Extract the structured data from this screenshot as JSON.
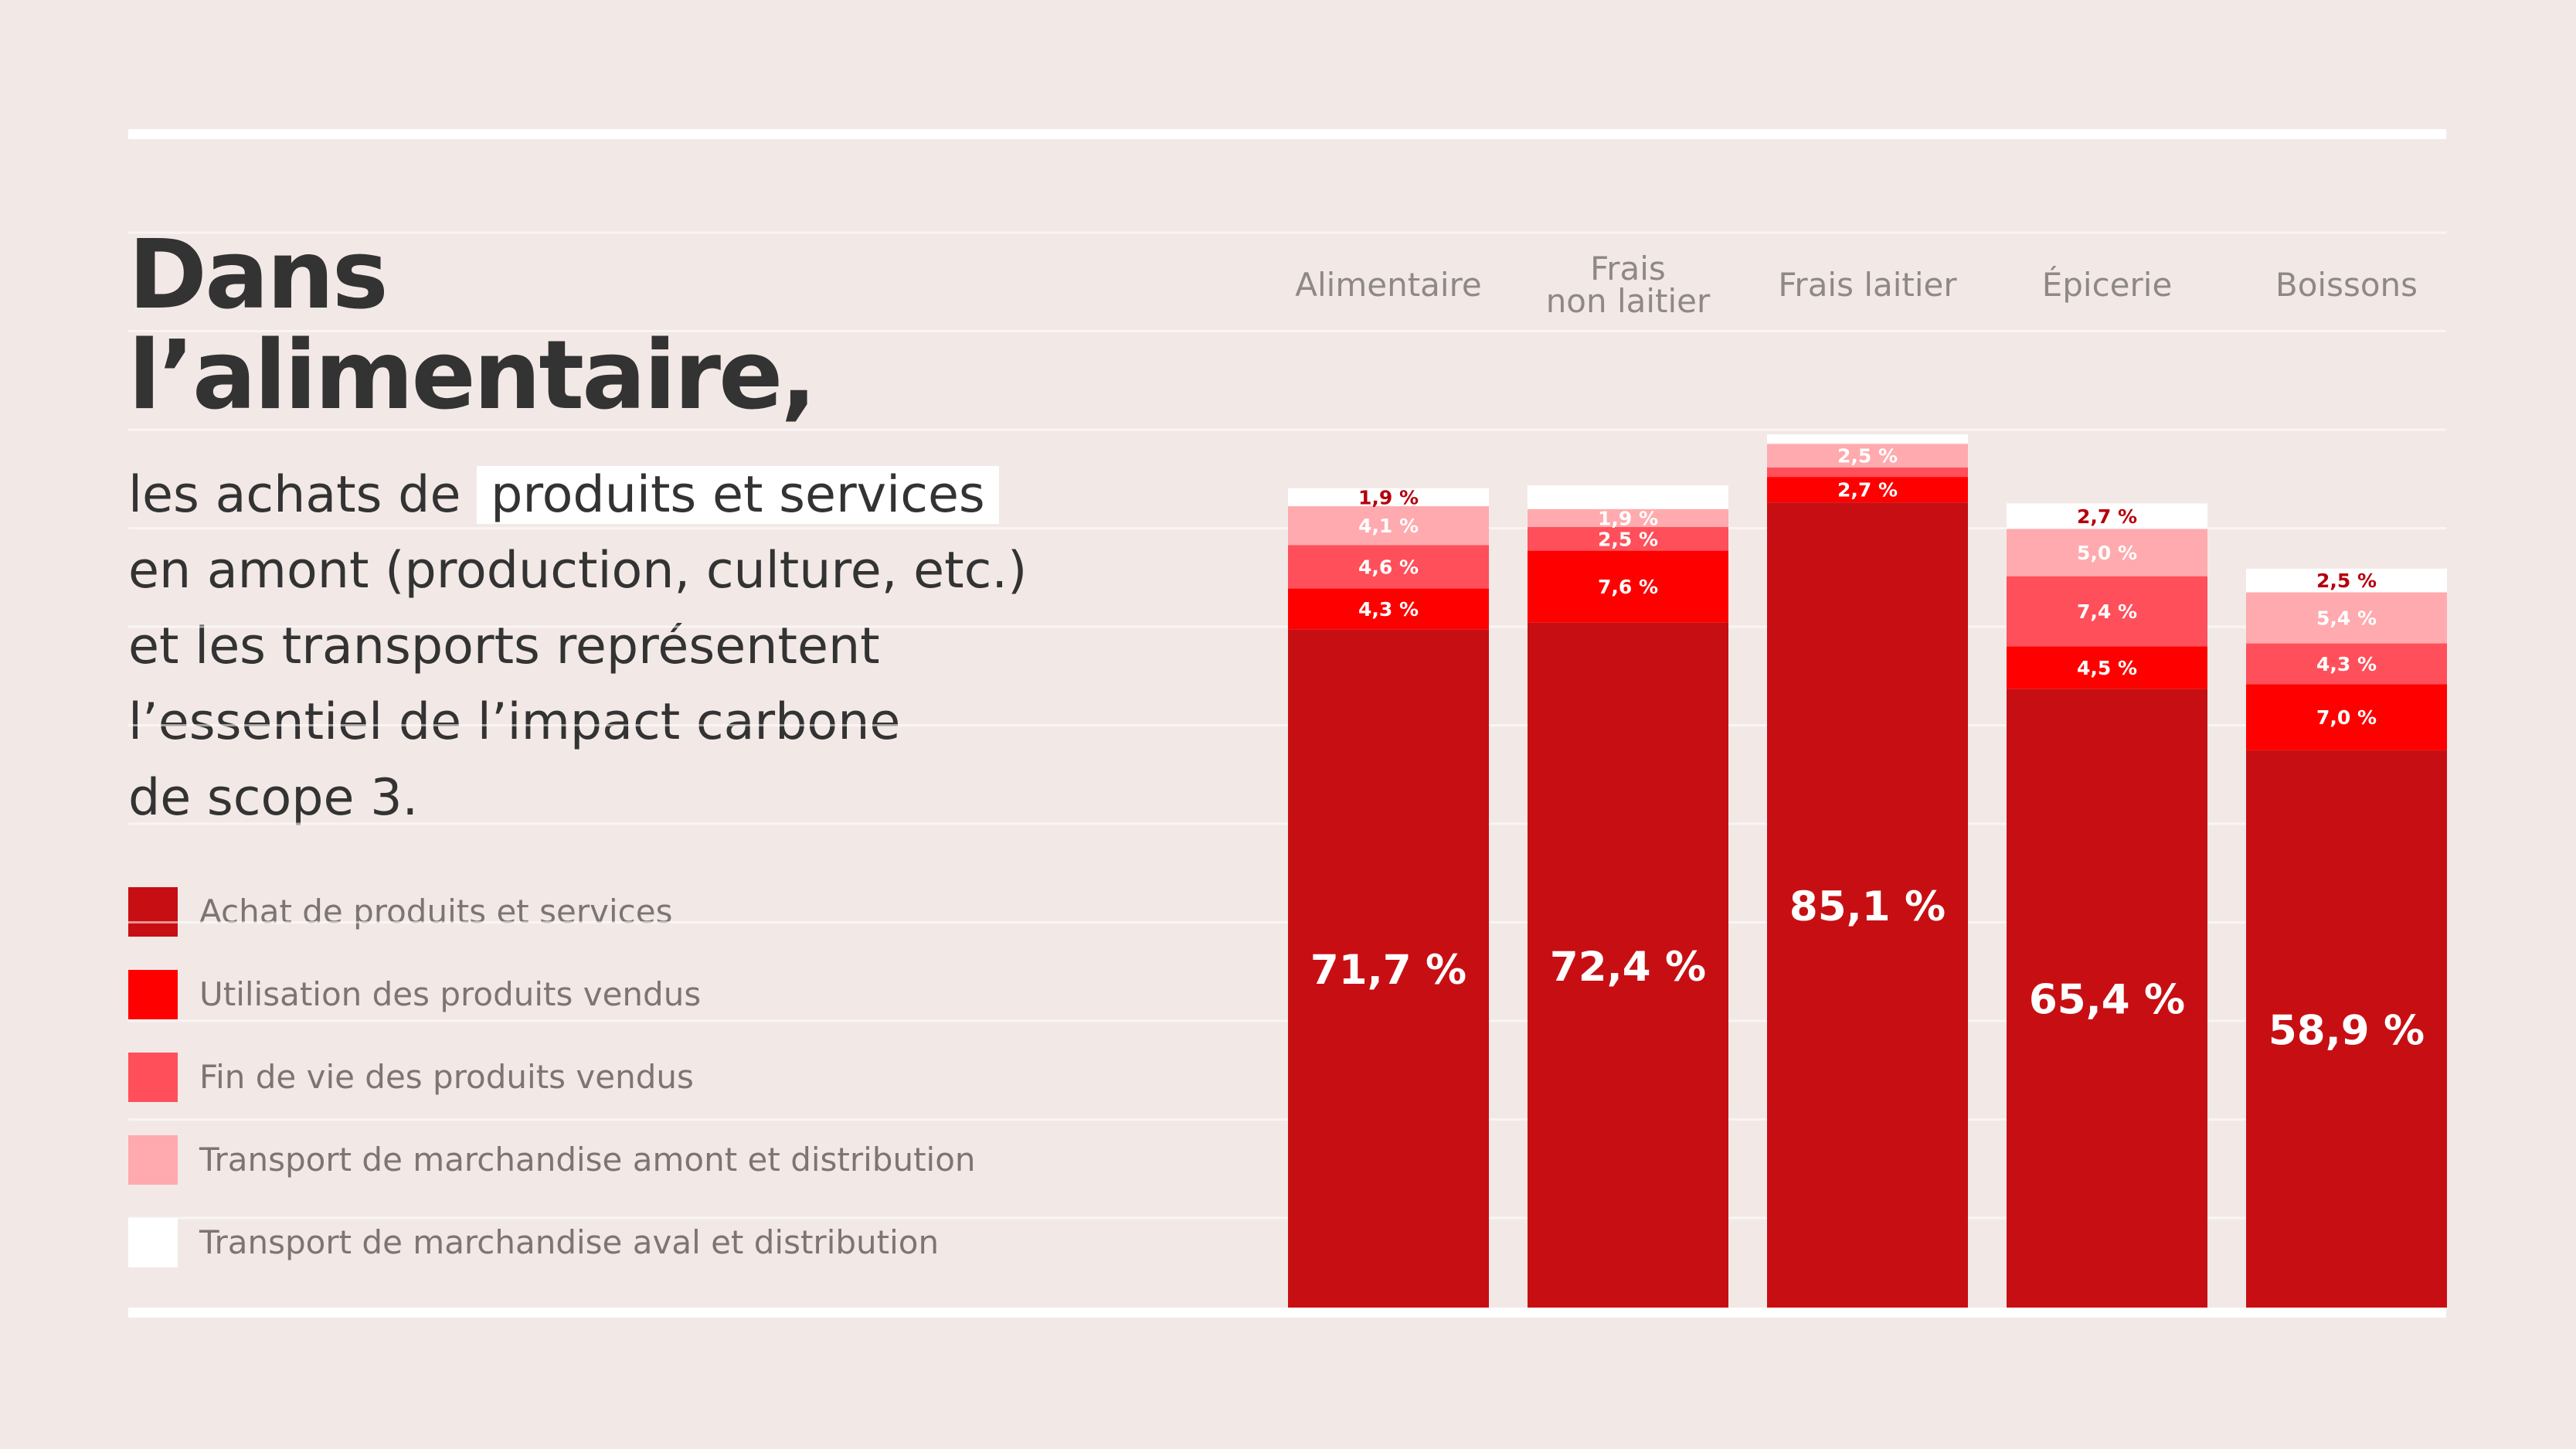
{
  "headline": {
    "line1": "Dans",
    "line2": "l’alimentaire,"
  },
  "body": {
    "l1_before": "les achats de ",
    "l1_highlight": "produits et services",
    "l2": "en amont (production, culture, etc.)",
    "l3": "et les transports représentent",
    "l4": "l’essentiel de l’impact carbone",
    "l5": "de scope 3."
  },
  "colors": {
    "background": "#f2e9e7",
    "text": "#333333",
    "legend_text": "#7d7573"
  },
  "chart_data": {
    "type": "bar",
    "stacked": true,
    "categories": [
      "Alimentaire",
      "Frais\nnon laitier",
      "Frais laitier",
      "Épicerie",
      "Boissons"
    ],
    "series": [
      {
        "name": "Achat de produits et services",
        "color": "#c70f13",
        "values": [
          71.7,
          72.4,
          85.1,
          65.4,
          58.9
        ],
        "labels": [
          "71,7 %",
          "72,4 %",
          "85,1 %",
          "65,4 %",
          "58,9 %"
        ]
      },
      {
        "name": "Utilisation des produits vendus",
        "color": "#ff0000",
        "values": [
          4.3,
          7.6,
          2.7,
          4.5,
          7.0
        ],
        "labels": [
          "4,3 %",
          "7,6 %",
          "2,7 %",
          "4,5 %",
          "7,0 %"
        ]
      },
      {
        "name": "Fin de vie des produits vendus",
        "color": "#ff4f5a",
        "values": [
          4.6,
          2.5,
          1.0,
          7.4,
          4.3
        ],
        "labels": [
          "4,6 %",
          "2,5 %",
          "",
          "7,4 %",
          "4,3 %"
        ]
      },
      {
        "name": "Transport de marchandise amont et distribution",
        "color": "#ffaaae",
        "values": [
          4.1,
          1.9,
          2.5,
          5.0,
          5.4
        ],
        "labels": [
          "4,1 %",
          "1,9 %",
          "2,5 %",
          "5,0 %",
          "5,4 %"
        ]
      },
      {
        "name": "Transport de marchandise aval et distribution",
        "color": "#ffffff",
        "values": [
          1.9,
          2.5,
          1.0,
          2.7,
          2.5
        ],
        "labels": [
          "1,9 %",
          "",
          "",
          "2,7 %",
          "2,5 %"
        ]
      }
    ],
    "grid": true,
    "legend_position": "left"
  }
}
